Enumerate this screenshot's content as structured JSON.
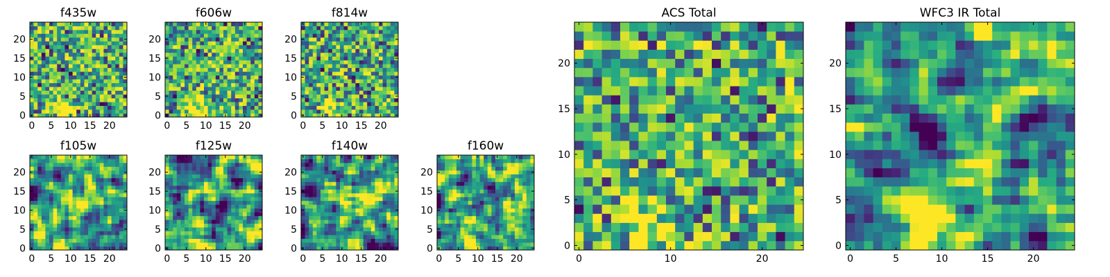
{
  "chart_data": [
    {
      "type": "heatmap",
      "title": "f435w",
      "xticks": [
        0,
        5,
        10,
        15,
        20
      ],
      "yticks": [
        0,
        5,
        10,
        15,
        20
      ],
      "xlim": [
        0,
        25
      ],
      "ylim": [
        0,
        25
      ],
      "colormap": "viridis",
      "texture": "pixel-noise"
    },
    {
      "type": "heatmap",
      "title": "f606w",
      "xticks": [
        0,
        5,
        10,
        15,
        20
      ],
      "yticks": [
        0,
        5,
        10,
        15,
        20
      ],
      "xlim": [
        0,
        25
      ],
      "ylim": [
        0,
        25
      ],
      "colormap": "viridis",
      "texture": "pixel-noise"
    },
    {
      "type": "heatmap",
      "title": "f814w",
      "xticks": [
        0,
        5,
        10,
        15,
        20
      ],
      "yticks": [
        0,
        5,
        10,
        15,
        20
      ],
      "xlim": [
        0,
        25
      ],
      "ylim": [
        0,
        25
      ],
      "colormap": "viridis",
      "texture": "pixel-noise"
    },
    {
      "type": "heatmap",
      "title": "f105w",
      "xticks": [
        0,
        5,
        10,
        15,
        20
      ],
      "yticks": [
        0,
        5,
        10,
        15,
        20
      ],
      "xlim": [
        0,
        25
      ],
      "ylim": [
        0,
        25
      ],
      "colormap": "viridis",
      "texture": "correlated-noise"
    },
    {
      "type": "heatmap",
      "title": "f125w",
      "xticks": [
        0,
        5,
        10,
        15,
        20
      ],
      "yticks": [
        0,
        5,
        10,
        15,
        20
      ],
      "xlim": [
        0,
        25
      ],
      "ylim": [
        0,
        25
      ],
      "colormap": "viridis",
      "texture": "correlated-noise"
    },
    {
      "type": "heatmap",
      "title": "f140w",
      "xticks": [
        0,
        5,
        10,
        15,
        20
      ],
      "yticks": [
        0,
        5,
        10,
        15,
        20
      ],
      "xlim": [
        0,
        25
      ],
      "ylim": [
        0,
        25
      ],
      "colormap": "viridis",
      "texture": "correlated-noise"
    },
    {
      "type": "heatmap",
      "title": "f160w",
      "xticks": [
        0,
        5,
        10,
        15,
        20
      ],
      "yticks": [
        0,
        5,
        10,
        15,
        20
      ],
      "xlim": [
        0,
        25
      ],
      "ylim": [
        0,
        25
      ],
      "colormap": "viridis",
      "texture": "correlated-noise"
    },
    {
      "type": "heatmap",
      "title": "ACS Total",
      "xticks": [
        0,
        10,
        20
      ],
      "yticks": [
        0,
        5,
        10,
        15,
        20
      ],
      "xlim": [
        0,
        25
      ],
      "ylim": [
        0,
        25
      ],
      "colormap": "viridis",
      "texture": "pixel-noise"
    },
    {
      "type": "heatmap",
      "title": "WFC3 IR Total",
      "xticks": [
        0,
        5,
        10,
        15,
        20
      ],
      "yticks": [
        0,
        5,
        10,
        15,
        20
      ],
      "xlim": [
        0,
        25
      ],
      "ylim": [
        0,
        25
      ],
      "colormap": "viridis",
      "texture": "correlated-noise"
    }
  ]
}
